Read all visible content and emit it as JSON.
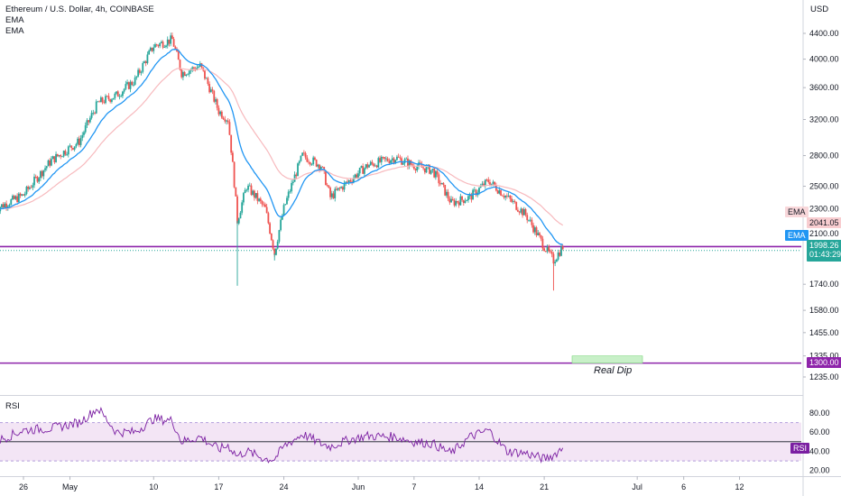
{
  "header": {
    "symbol_line": "Ethereum / U.S. Dollar, 4h, COINBASE",
    "ema_label_1": "EMA",
    "ema_label_2": "EMA",
    "currency": "USD"
  },
  "colors": {
    "up": "#26a69a",
    "down": "#ef5350",
    "ema_fast": "#2196f3",
    "ema_slow": "#f7b9bd",
    "level": "#8e24aa",
    "rsi": "#7b1fa2",
    "rsi_band": "#f3e5f5",
    "real_dip_box": "#c8f0c8"
  },
  "price_axis": {
    "ticks": [
      "4400.00",
      "4000.00",
      "3600.00",
      "3200.00",
      "2800.00",
      "2500.00",
      "2300.00",
      "2100.00",
      "1740.00",
      "1580.00",
      "1455.00",
      "1335.00",
      "1235.00"
    ]
  },
  "tags": {
    "ema_label_a": "EMA",
    "ema_label_b": "EMA",
    "ema_value": "2041.05",
    "price": "1998.26",
    "countdown": "01:43:29",
    "level": "1300.00",
    "rsi_label": "RSI"
  },
  "annotation": {
    "real_dip": "Real Dip"
  },
  "rsi": {
    "title": "RSI",
    "ticks": [
      "80.00",
      "60.00",
      "40.00",
      "20.00"
    ]
  },
  "time_axis": {
    "labels": [
      "26",
      "May",
      "10",
      "17",
      "24",
      "Jun",
      "7",
      "14",
      "21",
      "Jul",
      "6",
      "12"
    ]
  },
  "chart_data": {
    "type": "candlestick",
    "symbol": "Ethereum / U.S. Dollar",
    "interval": "4h",
    "exchange": "COINBASE",
    "ylim": [
      1200,
      4600
    ],
    "support_levels": [
      2000,
      1300
    ],
    "real_dip_zone": {
      "from": 1300,
      "to": 1335
    },
    "price_path": [
      [
        "Apr 23",
        2300
      ],
      [
        "Apr 26",
        2420
      ],
      [
        "Apr 29",
        2750
      ],
      [
        "May 2",
        2950
      ],
      [
        "May 4",
        3400
      ],
      [
        "May 6",
        3500
      ],
      [
        "May 8",
        3700
      ],
      [
        "May 10",
        4200
      ],
      [
        "May 12",
        4300
      ],
      [
        "May 13",
        3800
      ],
      [
        "May 15",
        3900
      ],
      [
        "May 17",
        3300
      ],
      [
        "May 18",
        3200
      ],
      [
        "May 19",
        2200
      ],
      [
        "May 20",
        2500
      ],
      [
        "May 22",
        2300
      ],
      [
        "May 23",
        1950
      ],
      [
        "May 24",
        2300
      ],
      [
        "May 26",
        2800
      ],
      [
        "May 28",
        2700
      ],
      [
        "May 29",
        2400
      ],
      [
        "May 31",
        2550
      ],
      [
        "Jun 2",
        2700
      ],
      [
        "Jun 5",
        2780
      ],
      [
        "Jun 7",
        2700
      ],
      [
        "Jun 9",
        2650
      ],
      [
        "Jun 11",
        2350
      ],
      [
        "Jun 13",
        2400
      ],
      [
        "Jun 15",
        2550
      ],
      [
        "Jun 17",
        2400
      ],
      [
        "Jun 19",
        2250
      ],
      [
        "Jun 21",
        2000
      ],
      [
        "Jun 22",
        1900
      ],
      [
        "Jun 23",
        1998
      ]
    ],
    "current_price": 1998.26,
    "ema_value": 2041.05,
    "rsi_ylim": [
      15,
      95
    ],
    "rsi_band": [
      30,
      70
    ],
    "rsi_level": 50,
    "rsi_path": [
      [
        "Apr 23",
        50
      ],
      [
        "Apr 26",
        62
      ],
      [
        "Apr 29",
        64
      ],
      [
        "May 2",
        70
      ],
      [
        "May 4",
        85
      ],
      [
        "May 6",
        60
      ],
      [
        "May 8",
        60
      ],
      [
        "May 10",
        74
      ],
      [
        "May 12",
        72
      ],
      [
        "May 13",
        50
      ],
      [
        "May 15",
        55
      ],
      [
        "May 17",
        42
      ],
      [
        "May 18",
        46
      ],
      [
        "May 19",
        35
      ],
      [
        "May 20",
        40
      ],
      [
        "May 22",
        32
      ],
      [
        "May 23",
        32
      ],
      [
        "May 24",
        45
      ],
      [
        "May 26",
        58
      ],
      [
        "May 28",
        48
      ],
      [
        "May 29",
        45
      ],
      [
        "May 31",
        52
      ],
      [
        "Jun 2",
        56
      ],
      [
        "Jun 5",
        55
      ],
      [
        "Jun 7",
        50
      ],
      [
        "Jun 9",
        48
      ],
      [
        "Jun 11",
        38
      ],
      [
        "Jun 13",
        55
      ],
      [
        "Jun 15",
        62
      ],
      [
        "Jun 17",
        40
      ],
      [
        "Jun 19",
        38
      ],
      [
        "Jun 21",
        32
      ],
      [
        "Jun 22",
        36
      ],
      [
        "Jun 23",
        44
      ]
    ]
  }
}
